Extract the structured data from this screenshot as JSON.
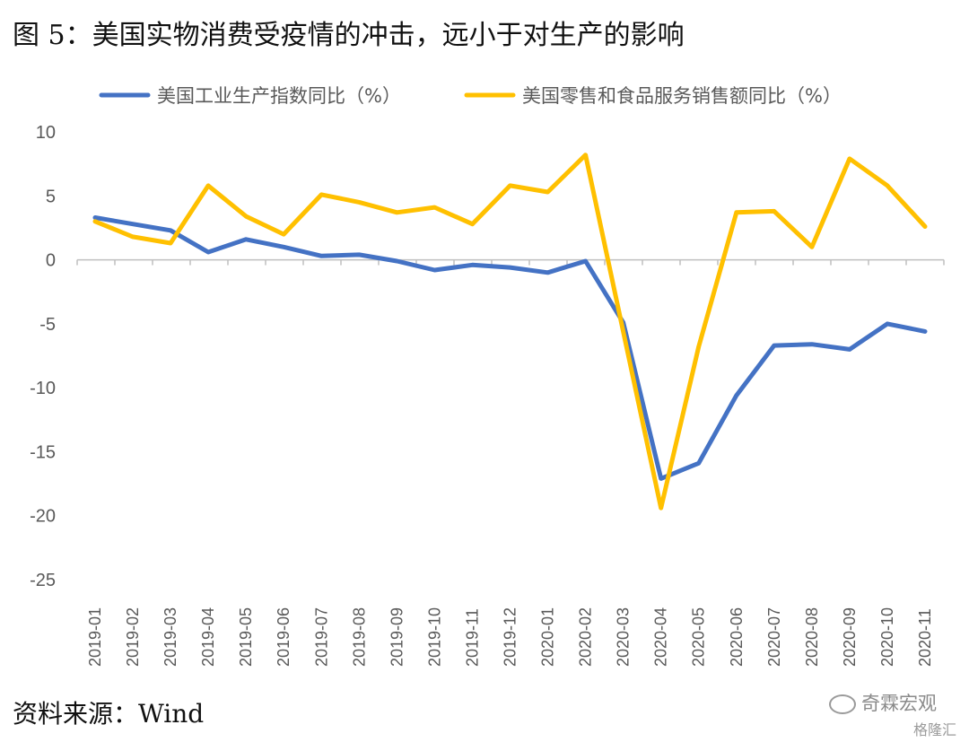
{
  "figure_title": "图 5：美国实物消费受疫情的冲击，远小于对生产的影响",
  "source_label": "资料来源：Wind",
  "watermark": "奇霖宏观",
  "watermark2": "格隆汇",
  "colors": {
    "series1": "#4472C4",
    "series2": "#FFC000",
    "axis": "#BFBFBF",
    "text": "#595959"
  },
  "chart_data": {
    "type": "line",
    "title": "",
    "xlabel": "",
    "ylabel": "",
    "ylim": [
      -25,
      10
    ],
    "yticks": [
      10,
      5,
      0,
      -5,
      -10,
      -15,
      -20,
      -25
    ],
    "grid": false,
    "legend_position": "top",
    "categories": [
      "2019-01",
      "2019-02",
      "2019-03",
      "2019-04",
      "2019-05",
      "2019-06",
      "2019-07",
      "2019-08",
      "2019-09",
      "2019-10",
      "2019-11",
      "2019-12",
      "2020-01",
      "2020-02",
      "2020-03",
      "2020-04",
      "2020-05",
      "2020-06",
      "2020-07",
      "2020-08",
      "2020-09",
      "2020-10",
      "2020-11"
    ],
    "series": [
      {
        "name": "美国工业生产指数同比（%）",
        "color": "#4472C4",
        "values": [
          3.3,
          2.8,
          2.3,
          0.6,
          1.6,
          1.0,
          0.3,
          0.4,
          -0.1,
          -0.8,
          -0.4,
          -0.6,
          -1.0,
          -0.1,
          -4.9,
          -17.1,
          -15.9,
          -10.6,
          -6.7,
          -6.6,
          -7.0,
          -5.0,
          -5.6
        ]
      },
      {
        "name": "美国零售和食品服务销售额同比（%）",
        "color": "#FFC000",
        "values": [
          3.0,
          1.8,
          1.3,
          5.8,
          3.4,
          2.0,
          5.1,
          4.5,
          3.7,
          4.1,
          2.8,
          5.8,
          5.3,
          8.2,
          -5.6,
          -19.4,
          -6.8,
          3.7,
          3.8,
          1.0,
          7.9,
          5.8,
          2.6
        ]
      }
    ]
  }
}
